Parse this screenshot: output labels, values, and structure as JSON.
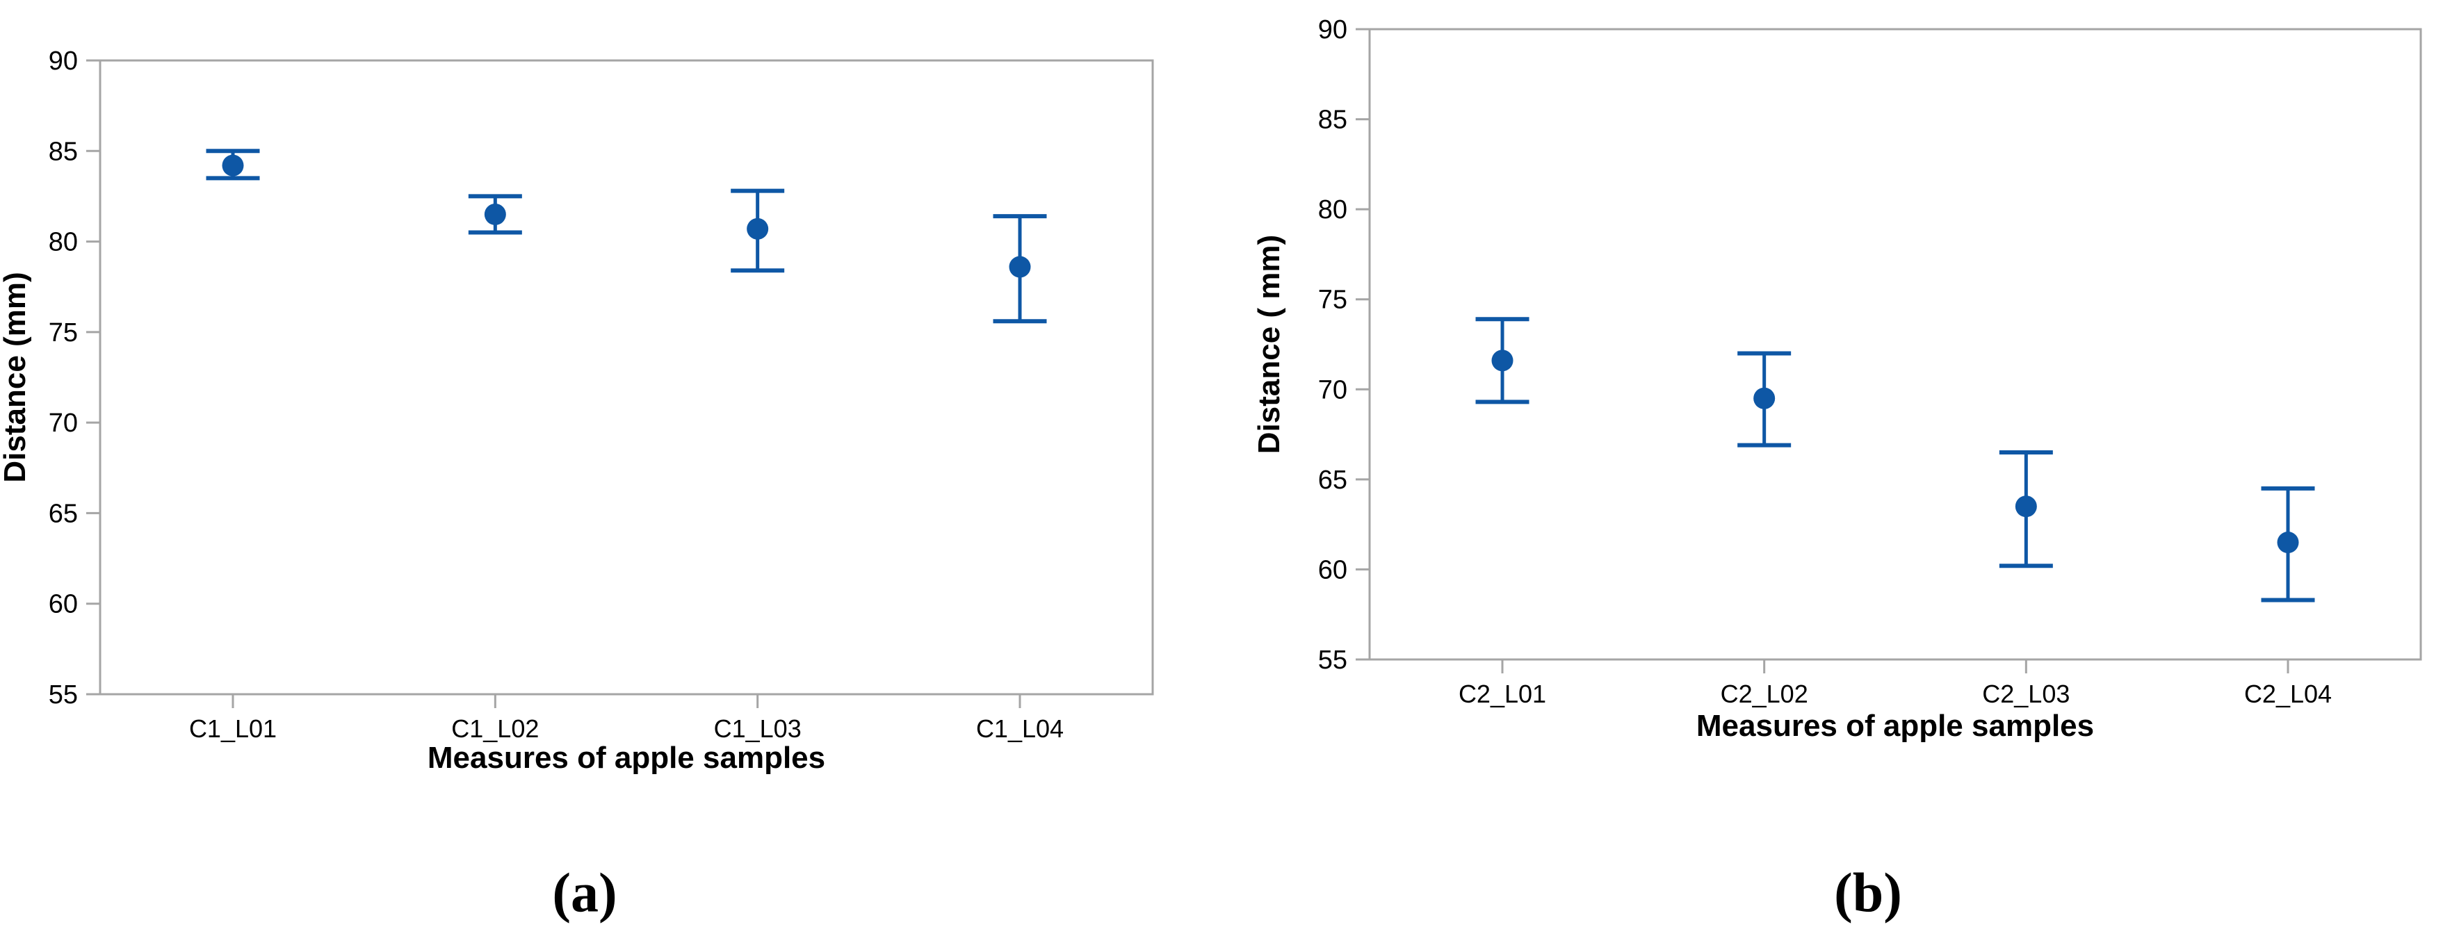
{
  "figure": {
    "captions": {
      "a": "(a)",
      "b": "(b)"
    },
    "colors": {
      "accent": "#0e57a5",
      "frame": "#a5a5a5",
      "text": "#000000",
      "background": "#ffffff"
    }
  },
  "chart_data": [
    {
      "type": "errorbar",
      "panel_label": "(a)",
      "title": "",
      "xlabel": "Measures of apple samples",
      "ylabel": "Distance (mm)",
      "ylim": [
        55,
        90
      ],
      "yticks": [
        55,
        60,
        65,
        70,
        75,
        80,
        85,
        90
      ],
      "grid": false,
      "legend_position": "none",
      "categories": [
        "C1_L01",
        "C1_L02",
        "C1_L03",
        "C1_L04"
      ],
      "series": [
        {
          "name": "mean",
          "values": [
            84.2,
            81.5,
            80.7,
            78.6
          ]
        },
        {
          "name": "ci_lower",
          "values": [
            83.5,
            80.5,
            78.4,
            75.6
          ]
        },
        {
          "name": "ci_upper",
          "values": [
            85.0,
            82.5,
            82.8,
            81.4
          ]
        }
      ]
    },
    {
      "type": "errorbar",
      "panel_label": "(b)",
      "title": "",
      "xlabel": "Measures of apple samples",
      "ylabel": "Distance ( mm)",
      "ylim": [
        55,
        90
      ],
      "yticks": [
        55,
        60,
        65,
        70,
        75,
        80,
        85,
        90
      ],
      "grid": false,
      "legend_position": "none",
      "categories": [
        "C2_L01",
        "C2_L02",
        "C2_L03",
        "C2_L04"
      ],
      "series": [
        {
          "name": "mean",
          "values": [
            71.6,
            69.5,
            63.5,
            61.5
          ]
        },
        {
          "name": "ci_lower",
          "values": [
            69.3,
            66.9,
            60.2,
            58.3
          ]
        },
        {
          "name": "ci_upper",
          "values": [
            73.9,
            72.0,
            66.5,
            64.5
          ]
        }
      ]
    }
  ]
}
